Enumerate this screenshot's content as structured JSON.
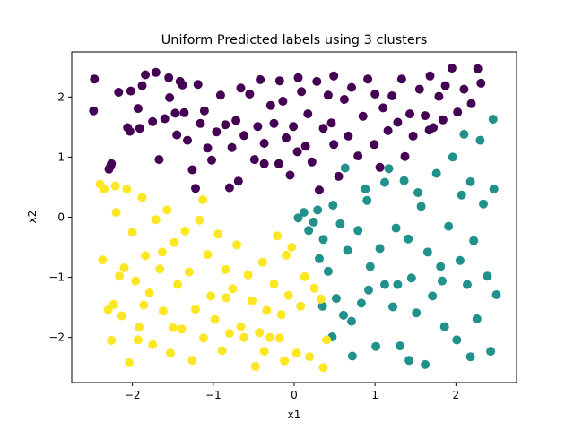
{
  "chart_data": {
    "type": "scatter",
    "title": "Uniform Predicted labels using 3 clusters",
    "xlabel": "x1",
    "ylabel": "x2",
    "xlim": [
      -2.75,
      2.75
    ],
    "ylim": [
      -2.75,
      2.75
    ],
    "xticks": [
      -2,
      -1,
      0,
      1,
      2
    ],
    "yticks": [
      -2,
      -1,
      0,
      1,
      2
    ],
    "xtick_labels": [
      "−2",
      "−1",
      "0",
      "1",
      "2"
    ],
    "ytick_labels": [
      "−2",
      "−1",
      "0",
      "1",
      "2"
    ],
    "grid": false,
    "legend": "none",
    "series": [
      {
        "color": "#440154",
        "points": [
          [
            -2.47,
            2.3
          ],
          [
            -2.48,
            1.77
          ],
          [
            -2.27,
            0.85
          ],
          [
            -2.29,
            0.8
          ],
          [
            -2.17,
            2.08
          ],
          [
            -2.06,
            1.49
          ],
          [
            -2.03,
            1.43
          ],
          [
            -1.93,
            1.81
          ],
          [
            -1.91,
            1.48
          ],
          [
            -1.88,
            2.19
          ],
          [
            -1.75,
            1.59
          ],
          [
            -1.71,
            2.41
          ],
          [
            -1.67,
            0.96
          ],
          [
            -1.6,
            1.64
          ],
          [
            -1.55,
            2.32
          ],
          [
            -1.54,
            1.99
          ],
          [
            -1.47,
            1.73
          ],
          [
            -1.45,
            1.37
          ],
          [
            -1.41,
            2.26
          ],
          [
            -1.36,
            1.74
          ],
          [
            -1.32,
            1.28
          ],
          [
            -1.26,
            0.79
          ],
          [
            -1.19,
            2.21
          ],
          [
            -1.16,
            1.56
          ],
          [
            -1.11,
            1.77
          ],
          [
            -1.07,
            1.15
          ],
          [
            -1.02,
            0.95
          ],
          [
            -0.96,
            1.42
          ],
          [
            -0.91,
            2.03
          ],
          [
            -0.85,
            1.54
          ],
          [
            -0.77,
            1.16
          ],
          [
            -0.72,
            1.61
          ],
          [
            -0.69,
            0.6
          ],
          [
            -0.62,
            1.36
          ],
          [
            -0.55,
            2.05
          ],
          [
            -0.49,
            0.96
          ],
          [
            -0.45,
            1.51
          ],
          [
            -0.42,
            2.29
          ],
          [
            -0.37,
            1.23
          ],
          [
            -0.29,
            1.86
          ],
          [
            -0.25,
            1.56
          ],
          [
            -0.19,
            0.89
          ],
          [
            -0.14,
            1.93
          ],
          [
            -0.1,
            1.32
          ],
          [
            -0.05,
            0.7
          ],
          [
            -0.01,
            1.51
          ],
          [
            0.04,
            1.09
          ],
          [
            0.09,
            2.09
          ],
          [
            0.14,
            1.18
          ],
          [
            0.17,
            1.72
          ],
          [
            0.22,
            0.92
          ],
          [
            0.28,
            2.26
          ],
          [
            0.31,
            0.45
          ],
          [
            0.36,
            1.48
          ],
          [
            0.42,
            2.03
          ],
          [
            0.49,
            1.21
          ],
          [
            0.55,
            0.68
          ],
          [
            0.62,
            1.96
          ],
          [
            0.67,
            1.35
          ],
          [
            0.71,
            2.16
          ],
          [
            0.79,
            1.02
          ],
          [
            0.85,
            1.68
          ],
          [
            0.91,
            2.3
          ],
          [
            0.99,
            1.21
          ],
          [
            1.06,
            0.83
          ],
          [
            1.1,
            1.82
          ],
          [
            1.16,
            1.44
          ],
          [
            1.21,
            2.02
          ],
          [
            1.28,
            1.58
          ],
          [
            1.33,
            2.3
          ],
          [
            1.37,
            1.01
          ],
          [
            1.43,
            1.72
          ],
          [
            1.47,
            1.35
          ],
          [
            1.55,
            2.13
          ],
          [
            1.62,
            1.69
          ],
          [
            1.68,
            2.35
          ],
          [
            1.72,
            1.49
          ],
          [
            1.79,
            2.01
          ],
          [
            1.84,
            1.62
          ],
          [
            1.87,
            2.19
          ],
          [
            1.95,
            2.48
          ],
          [
            2.02,
            1.75
          ],
          [
            2.1,
            2.13
          ],
          [
            2.19,
            1.89
          ],
          [
            2.27,
            2.47
          ],
          [
            2.31,
            2.23
          ],
          [
            -2.02,
            2.1
          ],
          [
            -1.84,
            2.37
          ],
          [
            -1.38,
            2.2
          ],
          [
            -0.66,
            2.15
          ],
          [
            -0.18,
            2.27
          ],
          [
            0.05,
            2.32
          ],
          [
            0.49,
            2.35
          ],
          [
            1.0,
            2.05
          ],
          [
            -2.26,
            0.89
          ],
          [
            -1.22,
            0.48
          ],
          [
            -0.8,
            0.49
          ],
          [
            -0.37,
            0.89
          ],
          [
            0.46,
            1.57
          ],
          [
            1.67,
            1.45
          ]
        ]
      },
      {
        "color": "#21918c",
        "points": [
          [
            0.05,
            -0.01
          ],
          [
            0.12,
            0.08
          ],
          [
            0.18,
            -0.22
          ],
          [
            0.24,
            -0.08
          ],
          [
            0.29,
            0.12
          ],
          [
            0.31,
            -0.69
          ],
          [
            0.36,
            -0.37
          ],
          [
            0.42,
            -0.9
          ],
          [
            0.48,
            0.2
          ],
          [
            0.52,
            -1.35
          ],
          [
            0.57,
            -0.11
          ],
          [
            0.61,
            -1.63
          ],
          [
            0.66,
            -0.55
          ],
          [
            0.72,
            -2.31
          ],
          [
            0.79,
            -0.22
          ],
          [
            0.83,
            -1.43
          ],
          [
            0.88,
            0.47
          ],
          [
            0.94,
            -0.82
          ],
          [
            1.01,
            -2.15
          ],
          [
            1.06,
            -0.52
          ],
          [
            1.12,
            -1.12
          ],
          [
            1.17,
            0.81
          ],
          [
            1.22,
            -1.49
          ],
          [
            1.26,
            -0.18
          ],
          [
            1.31,
            -2.14
          ],
          [
            1.36,
            0.61
          ],
          [
            1.41,
            -0.36
          ],
          [
            1.45,
            -1.01
          ],
          [
            1.51,
            -1.59
          ],
          [
            1.57,
            0.18
          ],
          [
            1.62,
            -2.45
          ],
          [
            1.65,
            -0.58
          ],
          [
            1.71,
            -1.31
          ],
          [
            1.76,
            0.73
          ],
          [
            1.81,
            -0.82
          ],
          [
            1.86,
            -1.82
          ],
          [
            1.91,
            -0.15
          ],
          [
            1.96,
            1.0
          ],
          [
            2.01,
            -2.04
          ],
          [
            2.05,
            -0.72
          ],
          [
            2.1,
            1.38
          ],
          [
            2.14,
            -1.12
          ],
          [
            2.18,
            0.59
          ],
          [
            2.22,
            -0.39
          ],
          [
            2.26,
            -1.69
          ],
          [
            2.3,
            1.28
          ],
          [
            2.34,
            0.22
          ],
          [
            2.39,
            -0.98
          ],
          [
            2.43,
            -2.23
          ],
          [
            2.47,
            0.47
          ],
          [
            2.5,
            -1.29
          ],
          [
            2.46,
            1.63
          ],
          [
            1.28,
            -1.12
          ],
          [
            0.71,
            -1.73
          ],
          [
            0.47,
            -1.99
          ],
          [
            0.92,
            -1.21
          ],
          [
            1.12,
            0.58
          ],
          [
            1.53,
            0.41
          ],
          [
            1.83,
            -1.06
          ],
          [
            2.18,
            -2.32
          ],
          [
            0.63,
            0.82
          ],
          [
            1.42,
            -2.38
          ],
          [
            2.07,
            0.37
          ],
          [
            0.9,
            0.28
          ],
          [
            0.35,
            -1.48
          ]
        ]
      },
      {
        "color": "#fde725",
        "points": [
          [
            -2.4,
            0.55
          ],
          [
            -2.35,
            0.47
          ],
          [
            -2.37,
            -0.71
          ],
          [
            -2.3,
            -1.54
          ],
          [
            -2.26,
            -2.05
          ],
          [
            -2.2,
            0.08
          ],
          [
            -2.16,
            -0.98
          ],
          [
            -2.13,
            -1.64
          ],
          [
            -2.07,
            0.47
          ],
          [
            -2.04,
            -2.42
          ],
          [
            -2.0,
            -0.25
          ],
          [
            -1.96,
            -1.06
          ],
          [
            -1.92,
            -1.83
          ],
          [
            -1.88,
            0.33
          ],
          [
            -1.84,
            -0.64
          ],
          [
            -1.79,
            -1.26
          ],
          [
            -1.75,
            -2.12
          ],
          [
            -1.71,
            -0.04
          ],
          [
            -1.66,
            -0.86
          ],
          [
            -1.62,
            -1.56
          ],
          [
            -1.57,
            0.12
          ],
          [
            -1.53,
            -2.26
          ],
          [
            -1.48,
            -0.42
          ],
          [
            -1.44,
            -1.12
          ],
          [
            -1.39,
            -1.86
          ],
          [
            -1.35,
            -0.23
          ],
          [
            -1.3,
            -0.91
          ],
          [
            -1.26,
            -2.38
          ],
          [
            -1.22,
            -1.53
          ],
          [
            -1.17,
            -0.05
          ],
          [
            -1.12,
            -2.01
          ],
          [
            -1.07,
            -0.62
          ],
          [
            -1.03,
            -1.31
          ],
          [
            -0.98,
            -1.7
          ],
          [
            -0.94,
            -0.28
          ],
          [
            -0.89,
            -2.22
          ],
          [
            -0.85,
            -0.87
          ],
          [
            -0.8,
            -1.93
          ],
          [
            -0.76,
            -1.19
          ],
          [
            -0.71,
            -0.46
          ],
          [
            -0.66,
            -1.82
          ],
          [
            -0.62,
            -2.0
          ],
          [
            -0.57,
            -0.96
          ],
          [
            -0.52,
            -1.39
          ],
          [
            -0.48,
            -2.48
          ],
          [
            -0.43,
            -1.92
          ],
          [
            -0.39,
            -0.75
          ],
          [
            -0.34,
            -1.55
          ],
          [
            -0.3,
            -2.0
          ],
          [
            -0.25,
            -1.11
          ],
          [
            -0.21,
            -0.31
          ],
          [
            -0.16,
            -1.62
          ],
          [
            -0.12,
            -2.39
          ],
          [
            -0.07,
            -1.3
          ],
          [
            -0.03,
            -0.5
          ],
          [
            0.03,
            -2.26
          ],
          [
            0.08,
            -1.48
          ],
          [
            0.13,
            -0.99
          ],
          [
            0.19,
            -2.32
          ],
          [
            0.25,
            -1.18
          ],
          [
            -2.21,
            0.52
          ],
          [
            -2.23,
            -1.45
          ],
          [
            -1.86,
            -1.46
          ],
          [
            -1.63,
            -0.58
          ],
          [
            -0.37,
            -2.23
          ],
          [
            0.4,
            -2.04
          ],
          [
            0.36,
            -2.5
          ],
          [
            -1.13,
            0.29
          ],
          [
            -0.1,
            -0.63
          ],
          [
            -1.93,
            -2.04
          ],
          [
            -2.1,
            -0.84
          ],
          [
            -1.5,
            -1.84
          ],
          [
            -0.84,
            -1.34
          ],
          [
            -0.18,
            -2.01
          ],
          [
            0.33,
            -1.36
          ]
        ]
      }
    ]
  }
}
